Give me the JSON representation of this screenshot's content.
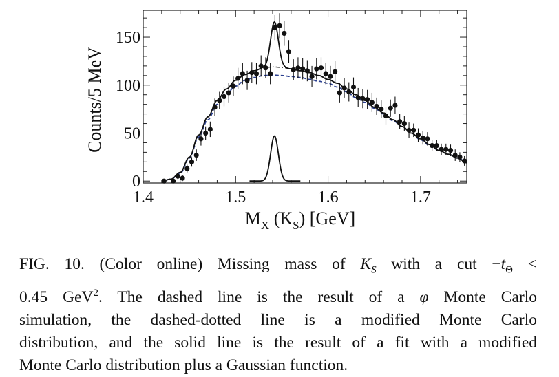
{
  "chart_data": {
    "type": "scatter",
    "xlabel": "M",
    "xlabel_sub1": "X",
    "xlabel_mid": " (K",
    "xlabel_sub2": "S",
    "xlabel_end": ") [GeV]",
    "ylabel": "Counts/5 MeV",
    "xlim": [
      1.4,
      1.75
    ],
    "ylim": [
      -2,
      178
    ],
    "x_ticks": [
      1.4,
      1.5,
      1.6,
      1.7
    ],
    "x_tick_labels": [
      "1.4",
      "1.5",
      "1.6",
      "1.7"
    ],
    "y_ticks": [
      0,
      50,
      100,
      150
    ],
    "y_tick_labels": [
      "0",
      "50",
      "100",
      "150"
    ],
    "grid": false,
    "series": [
      {
        "style": "points-with-error-bars",
        "color": "#111111",
        "points": [
          [
            1.4225,
            0,
            2
          ],
          [
            1.4325,
            0,
            2
          ],
          [
            1.4375,
            5,
            3
          ],
          [
            1.4425,
            3,
            3
          ],
          [
            1.4475,
            13,
            4
          ],
          [
            1.4525,
            20,
            5
          ],
          [
            1.4575,
            27,
            6
          ],
          [
            1.4625,
            44,
            7
          ],
          [
            1.4675,
            50,
            7
          ],
          [
            1.4725,
            54,
            8
          ],
          [
            1.4775,
            77,
            9
          ],
          [
            1.4825,
            84,
            9
          ],
          [
            1.4875,
            88,
            10
          ],
          [
            1.4925,
            92,
            10
          ],
          [
            1.4975,
            99,
            10
          ],
          [
            1.5025,
            107,
            11
          ],
          [
            1.5075,
            112,
            11
          ],
          [
            1.5125,
            105,
            10
          ],
          [
            1.5175,
            113,
            11
          ],
          [
            1.5225,
            112,
            11
          ],
          [
            1.5275,
            120,
            11
          ],
          [
            1.5325,
            118,
            11
          ],
          [
            1.5375,
            112,
            11
          ],
          [
            1.5425,
            160,
            13
          ],
          [
            1.5475,
            162,
            13
          ],
          [
            1.5525,
            154,
            13
          ],
          [
            1.5575,
            135,
            12
          ],
          [
            1.5625,
            116,
            11
          ],
          [
            1.5675,
            118,
            11
          ],
          [
            1.5725,
            117,
            11
          ],
          [
            1.5775,
            115,
            11
          ],
          [
            1.5825,
            109,
            11
          ],
          [
            1.5875,
            117,
            11
          ],
          [
            1.5925,
            118,
            11
          ],
          [
            1.5975,
            112,
            11
          ],
          [
            1.6025,
            109,
            11
          ],
          [
            1.6075,
            114,
            11
          ],
          [
            1.6125,
            92,
            10
          ],
          [
            1.6175,
            97,
            10
          ],
          [
            1.6225,
            93,
            10
          ],
          [
            1.6275,
            98,
            10
          ],
          [
            1.6325,
            87,
            10
          ],
          [
            1.6375,
            86,
            10
          ],
          [
            1.6425,
            85,
            10
          ],
          [
            1.6475,
            82,
            10
          ],
          [
            1.6525,
            78,
            9
          ],
          [
            1.6575,
            75,
            9
          ],
          [
            1.6625,
            68,
            9
          ],
          [
            1.6675,
            76,
            9
          ],
          [
            1.6725,
            79,
            9
          ],
          [
            1.6775,
            62,
            8
          ],
          [
            1.6825,
            60,
            8
          ],
          [
            1.6875,
            53,
            8
          ],
          [
            1.6925,
            53,
            7
          ],
          [
            1.6975,
            48,
            7
          ],
          [
            1.7025,
            45,
            7
          ],
          [
            1.7075,
            44,
            7
          ],
          [
            1.7125,
            37,
            6
          ],
          [
            1.7175,
            37,
            6
          ],
          [
            1.7225,
            33,
            6
          ],
          [
            1.7275,
            33,
            6
          ],
          [
            1.7325,
            32,
            6
          ],
          [
            1.7375,
            27,
            6
          ],
          [
            1.7425,
            25,
            5
          ],
          [
            1.7475,
            21,
            5
          ]
        ]
      },
      {
        "style": "dashed",
        "color": "#2a3f8f",
        "points": [
          [
            1.42,
            0
          ],
          [
            1.43,
            2
          ],
          [
            1.44,
            8
          ],
          [
            1.45,
            24
          ],
          [
            1.46,
            46
          ],
          [
            1.47,
            64
          ],
          [
            1.48,
            80
          ],
          [
            1.49,
            91
          ],
          [
            1.5,
            99
          ],
          [
            1.51,
            105
          ],
          [
            1.52,
            108
          ],
          [
            1.53,
            110
          ],
          [
            1.54,
            110.5
          ],
          [
            1.55,
            110
          ],
          [
            1.56,
            109
          ],
          [
            1.57,
            108
          ],
          [
            1.58,
            106
          ],
          [
            1.59,
            104
          ],
          [
            1.6,
            102
          ],
          [
            1.61,
            98
          ],
          [
            1.62,
            93
          ],
          [
            1.63,
            87
          ],
          [
            1.64,
            82
          ],
          [
            1.65,
            76
          ],
          [
            1.66,
            70
          ],
          [
            1.67,
            63
          ],
          [
            1.68,
            57
          ],
          [
            1.69,
            50
          ],
          [
            1.7,
            43
          ],
          [
            1.71,
            37
          ],
          [
            1.72,
            32
          ],
          [
            1.73,
            28
          ],
          [
            1.74,
            24
          ],
          [
            1.75,
            20
          ]
        ]
      },
      {
        "style": "dash-dotted",
        "color": "#111111",
        "points": [
          [
            1.42,
            0
          ],
          [
            1.43,
            2
          ],
          [
            1.44,
            9
          ],
          [
            1.45,
            25
          ],
          [
            1.46,
            48
          ],
          [
            1.47,
            67
          ],
          [
            1.48,
            84
          ],
          [
            1.49,
            96
          ],
          [
            1.5,
            105
          ],
          [
            1.51,
            111
          ],
          [
            1.52,
            115
          ],
          [
            1.53,
            118
          ],
          [
            1.54,
            119
          ],
          [
            1.55,
            118.5
          ],
          [
            1.56,
            117
          ],
          [
            1.57,
            115
          ],
          [
            1.58,
            113
          ],
          [
            1.59,
            110
          ],
          [
            1.6,
            106
          ],
          [
            1.61,
            102
          ],
          [
            1.62,
            96
          ],
          [
            1.63,
            90
          ],
          [
            1.64,
            84
          ],
          [
            1.65,
            77
          ],
          [
            1.66,
            71
          ],
          [
            1.67,
            64
          ],
          [
            1.68,
            57
          ],
          [
            1.69,
            50
          ],
          [
            1.7,
            44
          ],
          [
            1.71,
            38
          ],
          [
            1.72,
            32
          ],
          [
            1.73,
            28
          ],
          [
            1.74,
            24
          ],
          [
            1.75,
            19
          ]
        ]
      },
      {
        "style": "solid",
        "color": "#111111",
        "baseline": "modified-monte-carlo",
        "gaussian": {
          "mean": 1.542,
          "sigma": 0.0042,
          "amplitude": 47
        }
      },
      {
        "style": "solid",
        "color": "#111111",
        "gaussian_only": {
          "mean": 1.542,
          "sigma": 0.0042,
          "amplitude": 47
        }
      }
    ]
  },
  "caption": {
    "lines": [
      "FIG. 10. (Color online) Missing mass of K_S with a cut −t_Θ <",
      "0.45 GeV². The dashed line is the result of a φ Monte Carlo",
      "simulation, the dashed-dotted line is a modified Monte Carlo",
      "distribution, and the solid line is the result of a fit with a modified",
      "Monte Carlo distribution plus a Gaussian function."
    ],
    "l1_a": "FIG. 10. (Color online) Missing mass of ",
    "l1_K": "K",
    "l1_Ksub": "S",
    "l1_b": " with a cut −",
    "l1_t": "t",
    "l1_tsub": "Θ",
    "l1_c": " <",
    "l2_a": "0.45 GeV",
    "l2_sup": "2",
    "l2_b": ". The dashed line is the result of a ",
    "l2_phi": "φ",
    "l2_c": " Monte Carlo",
    "l3": "simulation, the dashed-dotted line is a modified Monte Carlo",
    "l4": "distribution, and the solid line is the result of a fit with a modified",
    "l5": "Monte Carlo distribution plus a Gaussian function."
  }
}
